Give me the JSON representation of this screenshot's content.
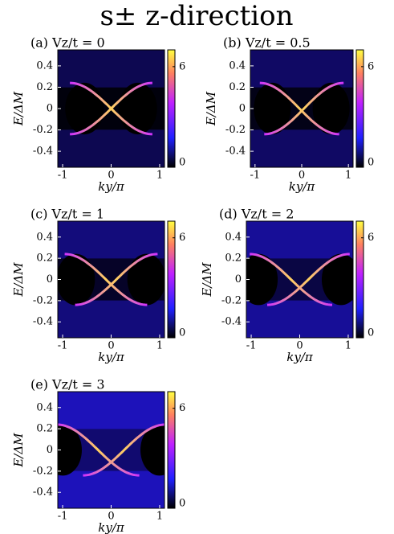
{
  "title": "s± z-direction",
  "chart_data": [
    {
      "type": "heatmap",
      "title": "(a) Vz/t = 0",
      "xlabel": "ky/π",
      "ylabel": "E/ΔM",
      "xlim": [
        -1.1,
        1.1
      ],
      "ylim": [
        -0.55,
        0.55
      ],
      "xticks": [
        -1,
        0,
        1
      ],
      "yticks": [
        0.4,
        0.2,
        0,
        -0.2,
        -0.4
      ],
      "clim": [
        0,
        7
      ],
      "cticks": [
        6,
        0
      ]
    },
    {
      "type": "heatmap",
      "title": "(b) Vz/t = 0.5",
      "xlabel": "ky/π",
      "ylabel": "E/ΔM",
      "xlim": [
        -1.1,
        1.1
      ],
      "ylim": [
        -0.55,
        0.55
      ],
      "xticks": [
        -1,
        0,
        1
      ],
      "yticks": [
        0.4,
        0.2,
        0,
        -0.2,
        -0.4
      ],
      "clim": [
        0,
        7
      ],
      "cticks": [
        6,
        0
      ]
    },
    {
      "type": "heatmap",
      "title": "(c) Vz/t = 1",
      "xlabel": "ky/π",
      "ylabel": "E/ΔM",
      "xlim": [
        -1.1,
        1.1
      ],
      "ylim": [
        -0.55,
        0.55
      ],
      "xticks": [
        -1,
        0,
        1
      ],
      "yticks": [
        0.4,
        0.2,
        0,
        -0.2,
        -0.4
      ],
      "clim": [
        0,
        7
      ],
      "cticks": [
        6,
        0
      ]
    },
    {
      "type": "heatmap",
      "title": "(d) Vz/t = 2",
      "xlabel": "ky/π",
      "ylabel": "E/ΔM",
      "xlim": [
        -1.1,
        1.1
      ],
      "ylim": [
        -0.55,
        0.55
      ],
      "xticks": [
        -1,
        0,
        1
      ],
      "yticks": [
        0.4,
        0.2,
        0,
        -0.2,
        -0.4
      ],
      "clim": [
        0,
        7
      ],
      "cticks": [
        6,
        0
      ]
    },
    {
      "type": "heatmap",
      "title": "(e) Vz/t = 3",
      "xlabel": "ky/π",
      "ylabel": "E/ΔM",
      "xlim": [
        -1.1,
        1.1
      ],
      "ylim": [
        -0.55,
        0.55
      ],
      "xticks": [
        -1,
        0,
        1
      ],
      "yticks": [
        0.4,
        0.2,
        0,
        -0.2,
        -0.4
      ],
      "clim": [
        0,
        7
      ],
      "cticks": [
        6,
        0
      ]
    }
  ]
}
